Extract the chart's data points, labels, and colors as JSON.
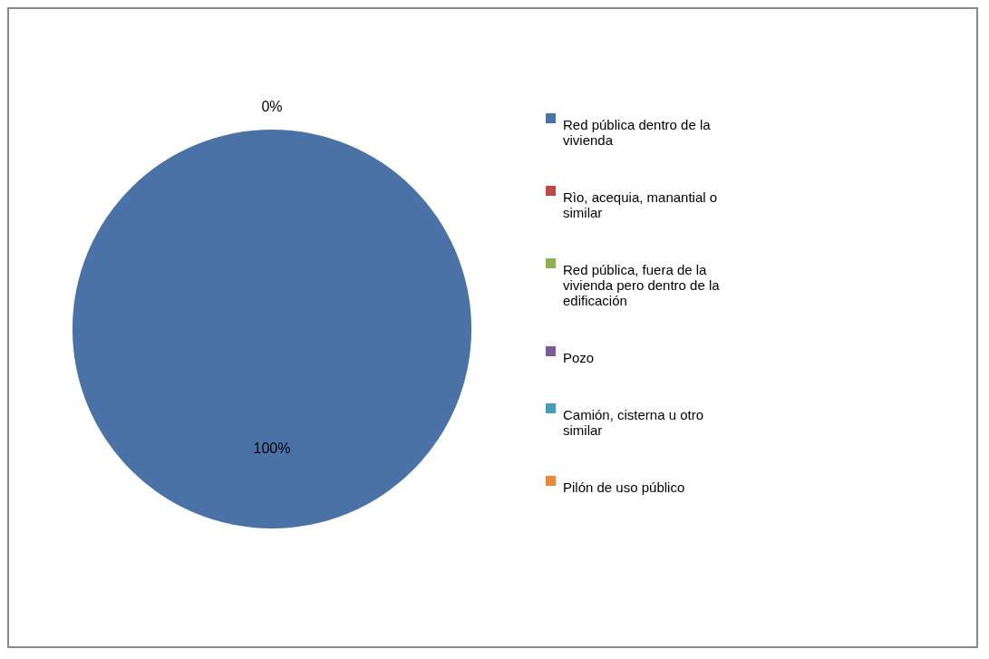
{
  "chart_data": {
    "type": "pie",
    "categories": [
      "Red pública dentro de la vivienda",
      "Rìo, acequia, manantial o similar",
      "Red pública, fuera de la vivienda pero dentro de la edificación",
      "Pozo",
      "Camión, cisterna u otro similar",
      "Pilón de uso público"
    ],
    "values": [
      100,
      0,
      0,
      0,
      0,
      0
    ],
    "colors": [
      "#4a72a6",
      "#b94a48",
      "#93ae55",
      "#7a5c9b",
      "#4a9bb5",
      "#e8893f"
    ],
    "value_labels": [
      "100%",
      "0%",
      null,
      null,
      null,
      null
    ],
    "legend": "right"
  }
}
